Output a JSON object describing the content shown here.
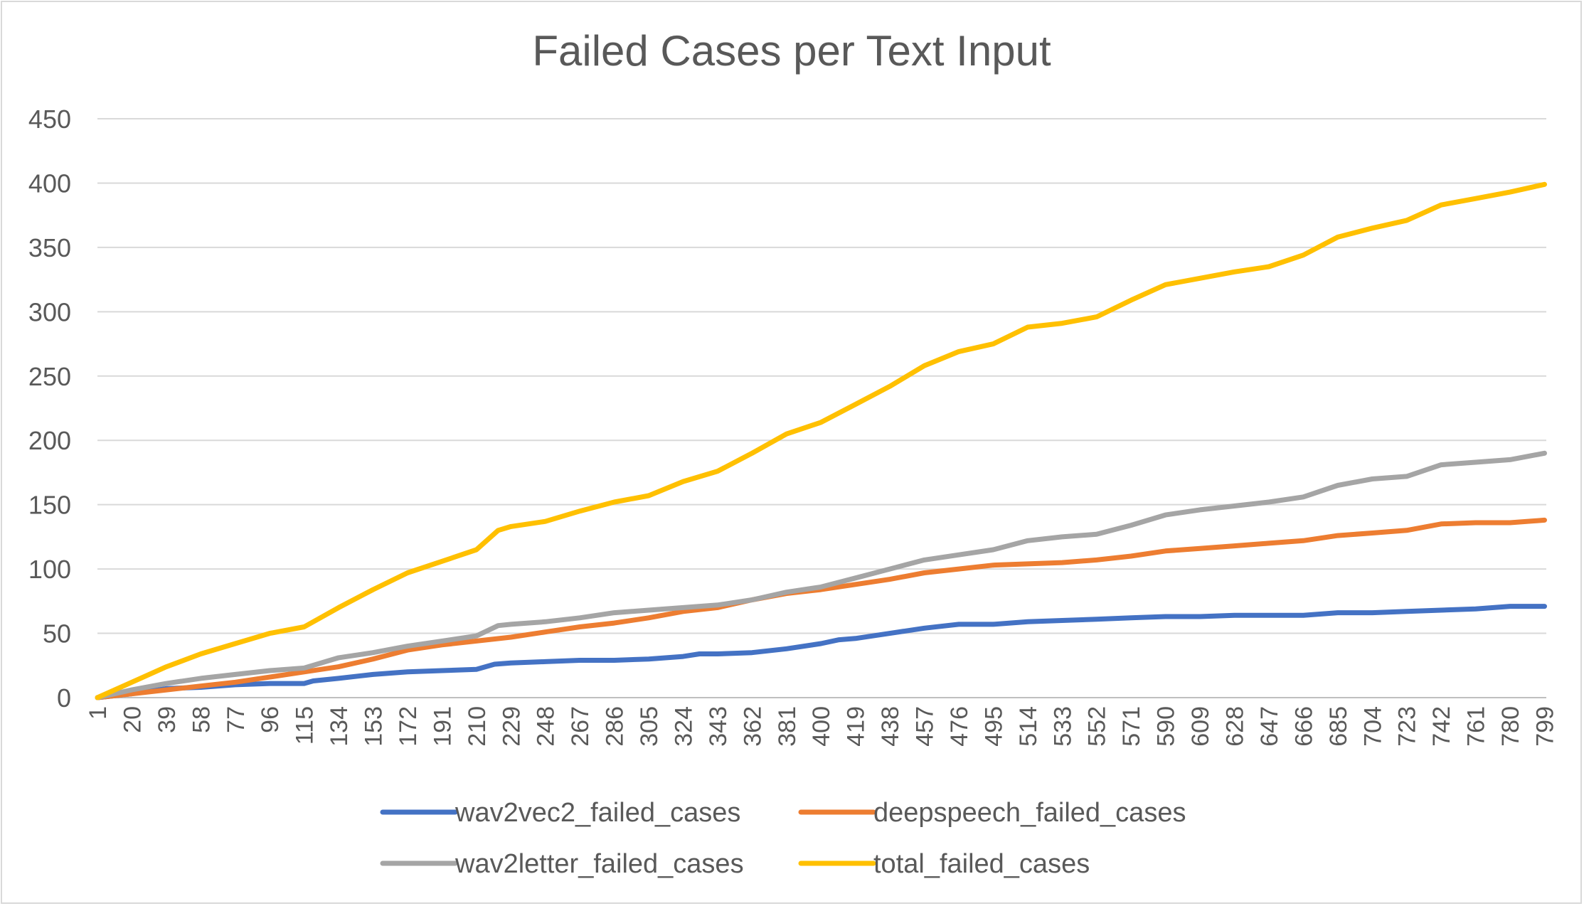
{
  "chart_data": {
    "type": "line",
    "title": "Failed Cases per Text Input",
    "xlabel": "",
    "ylabel": "",
    "ylim": [
      0,
      450
    ],
    "yticks": [
      0,
      50,
      100,
      150,
      200,
      250,
      300,
      350,
      400,
      450
    ],
    "xlim": [
      1,
      800
    ],
    "xticks": [
      1,
      20,
      39,
      58,
      77,
      96,
      115,
      134,
      153,
      172,
      191,
      210,
      229,
      248,
      267,
      286,
      305,
      324,
      343,
      362,
      381,
      400,
      419,
      438,
      457,
      476,
      495,
      514,
      533,
      552,
      571,
      590,
      609,
      628,
      647,
      666,
      685,
      704,
      723,
      742,
      761,
      780,
      799
    ],
    "grid": "horizontal",
    "legend_position": "bottom",
    "series": [
      {
        "name": "wav2vec2_failed_cases",
        "color": "#4472C4",
        "points": [
          [
            1,
            0
          ],
          [
            20,
            3
          ],
          [
            39,
            7
          ],
          [
            58,
            8
          ],
          [
            77,
            10
          ],
          [
            96,
            11
          ],
          [
            115,
            11
          ],
          [
            120,
            13
          ],
          [
            134,
            15
          ],
          [
            153,
            18
          ],
          [
            172,
            20
          ],
          [
            191,
            21
          ],
          [
            210,
            22
          ],
          [
            220,
            26
          ],
          [
            229,
            27
          ],
          [
            248,
            28
          ],
          [
            267,
            29
          ],
          [
            286,
            29
          ],
          [
            305,
            30
          ],
          [
            324,
            32
          ],
          [
            333,
            34
          ],
          [
            343,
            34
          ],
          [
            362,
            35
          ],
          [
            381,
            38
          ],
          [
            400,
            42
          ],
          [
            410,
            45
          ],
          [
            419,
            46
          ],
          [
            438,
            50
          ],
          [
            457,
            54
          ],
          [
            476,
            57
          ],
          [
            495,
            57
          ],
          [
            514,
            59
          ],
          [
            533,
            60
          ],
          [
            552,
            61
          ],
          [
            571,
            62
          ],
          [
            590,
            63
          ],
          [
            609,
            63
          ],
          [
            628,
            64
          ],
          [
            647,
            64
          ],
          [
            666,
            64
          ],
          [
            685,
            66
          ],
          [
            704,
            66
          ],
          [
            723,
            67
          ],
          [
            742,
            68
          ],
          [
            761,
            69
          ],
          [
            780,
            71
          ],
          [
            799,
            71
          ]
        ]
      },
      {
        "name": "deepspeech_failed_cases",
        "color": "#ED7D31",
        "points": [
          [
            1,
            0
          ],
          [
            20,
            3
          ],
          [
            39,
            6
          ],
          [
            58,
            9
          ],
          [
            77,
            12
          ],
          [
            96,
            16
          ],
          [
            115,
            20
          ],
          [
            134,
            24
          ],
          [
            153,
            30
          ],
          [
            172,
            37
          ],
          [
            191,
            41
          ],
          [
            210,
            44
          ],
          [
            229,
            47
          ],
          [
            248,
            51
          ],
          [
            267,
            55
          ],
          [
            286,
            58
          ],
          [
            305,
            62
          ],
          [
            324,
            67
          ],
          [
            343,
            70
          ],
          [
            362,
            76
          ],
          [
            381,
            81
          ],
          [
            400,
            84
          ],
          [
            419,
            88
          ],
          [
            438,
            92
          ],
          [
            457,
            97
          ],
          [
            476,
            100
          ],
          [
            495,
            103
          ],
          [
            514,
            104
          ],
          [
            533,
            105
          ],
          [
            552,
            107
          ],
          [
            571,
            110
          ],
          [
            590,
            114
          ],
          [
            609,
            116
          ],
          [
            628,
            118
          ],
          [
            647,
            120
          ],
          [
            666,
            122
          ],
          [
            685,
            126
          ],
          [
            704,
            128
          ],
          [
            723,
            130
          ],
          [
            742,
            135
          ],
          [
            761,
            136
          ],
          [
            780,
            136
          ],
          [
            799,
            138
          ]
        ]
      },
      {
        "name": "wav2letter_failed_cases",
        "color": "#A5A5A5",
        "points": [
          [
            1,
            0
          ],
          [
            20,
            6
          ],
          [
            39,
            11
          ],
          [
            58,
            15
          ],
          [
            77,
            18
          ],
          [
            96,
            21
          ],
          [
            115,
            23
          ],
          [
            134,
            31
          ],
          [
            153,
            35
          ],
          [
            172,
            40
          ],
          [
            191,
            44
          ],
          [
            210,
            48
          ],
          [
            222,
            56
          ],
          [
            229,
            57
          ],
          [
            248,
            59
          ],
          [
            267,
            62
          ],
          [
            286,
            66
          ],
          [
            305,
            68
          ],
          [
            324,
            70
          ],
          [
            343,
            72
          ],
          [
            362,
            76
          ],
          [
            381,
            82
          ],
          [
            400,
            86
          ],
          [
            419,
            93
          ],
          [
            438,
            100
          ],
          [
            457,
            107
          ],
          [
            476,
            111
          ],
          [
            495,
            115
          ],
          [
            514,
            122
          ],
          [
            533,
            125
          ],
          [
            552,
            127
          ],
          [
            571,
            134
          ],
          [
            590,
            142
          ],
          [
            609,
            146
          ],
          [
            628,
            149
          ],
          [
            647,
            152
          ],
          [
            666,
            156
          ],
          [
            685,
            165
          ],
          [
            704,
            170
          ],
          [
            723,
            172
          ],
          [
            742,
            181
          ],
          [
            761,
            183
          ],
          [
            780,
            185
          ],
          [
            799,
            190
          ]
        ]
      },
      {
        "name": "total_failed_cases",
        "color": "#FFC000",
        "points": [
          [
            1,
            0
          ],
          [
            20,
            12
          ],
          [
            39,
            24
          ],
          [
            58,
            34
          ],
          [
            77,
            42
          ],
          [
            96,
            50
          ],
          [
            115,
            55
          ],
          [
            134,
            70
          ],
          [
            153,
            84
          ],
          [
            172,
            97
          ],
          [
            191,
            106
          ],
          [
            210,
            115
          ],
          [
            222,
            130
          ],
          [
            229,
            133
          ],
          [
            248,
            137
          ],
          [
            267,
            145
          ],
          [
            286,
            152
          ],
          [
            305,
            157
          ],
          [
            324,
            168
          ],
          [
            343,
            176
          ],
          [
            362,
            190
          ],
          [
            381,
            205
          ],
          [
            400,
            214
          ],
          [
            419,
            228
          ],
          [
            438,
            242
          ],
          [
            457,
            258
          ],
          [
            476,
            269
          ],
          [
            495,
            275
          ],
          [
            514,
            288
          ],
          [
            533,
            291
          ],
          [
            552,
            296
          ],
          [
            571,
            309
          ],
          [
            590,
            321
          ],
          [
            609,
            326
          ],
          [
            628,
            331
          ],
          [
            647,
            335
          ],
          [
            666,
            344
          ],
          [
            685,
            358
          ],
          [
            704,
            365
          ],
          [
            723,
            371
          ],
          [
            742,
            383
          ],
          [
            761,
            388
          ],
          [
            780,
            393
          ],
          [
            799,
            399
          ]
        ]
      }
    ]
  }
}
